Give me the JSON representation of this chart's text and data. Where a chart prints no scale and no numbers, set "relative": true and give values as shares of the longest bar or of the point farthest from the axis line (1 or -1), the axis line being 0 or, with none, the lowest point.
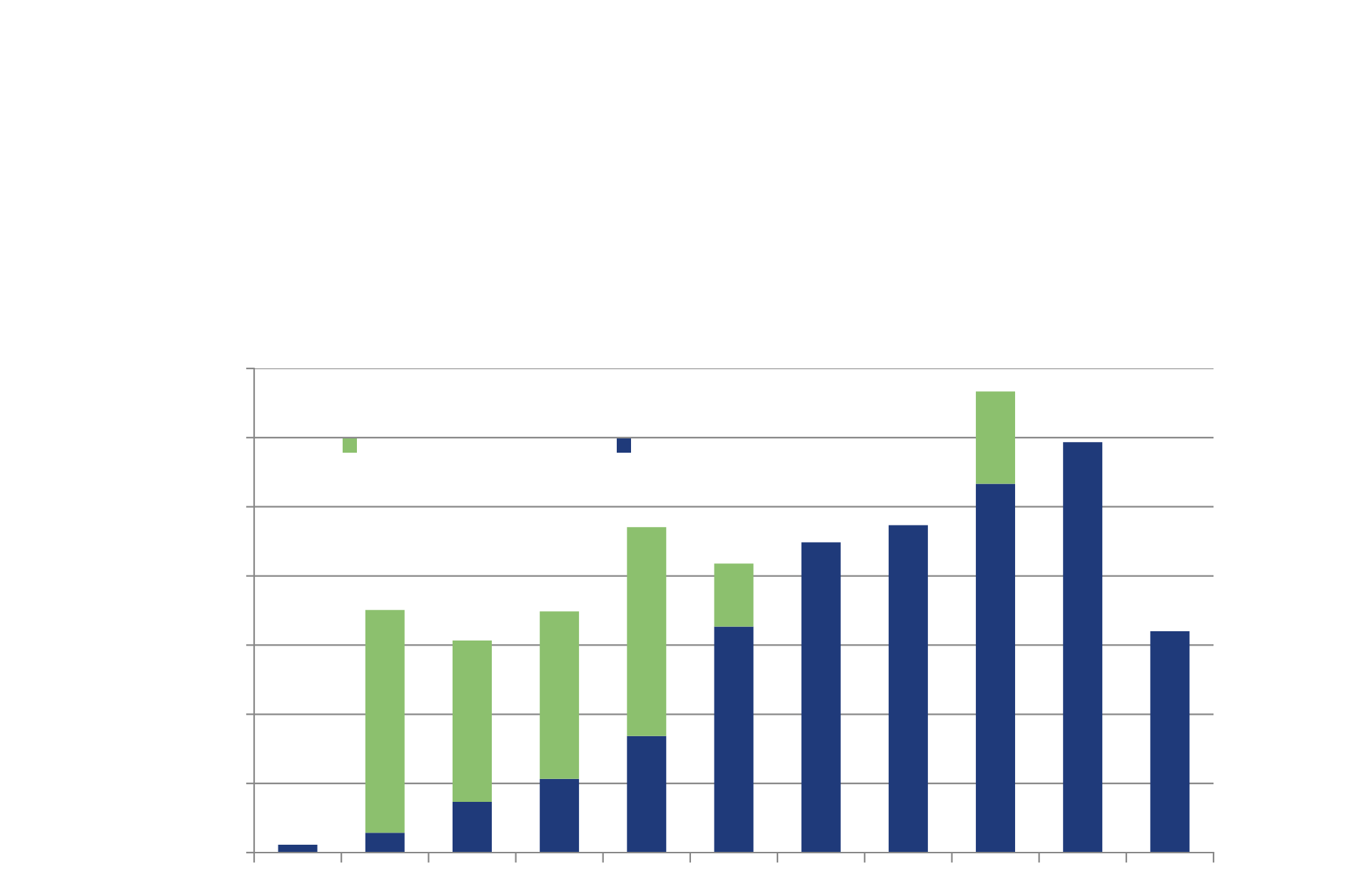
{
  "chart_data": {
    "type": "bar",
    "stacked": true,
    "relative": true,
    "categories": [
      null,
      null,
      null,
      null,
      null,
      null,
      null,
      null,
      null,
      null,
      null
    ],
    "series": [
      {
        "color": "#1f3a7a",
        "values": [
          0.017,
          0.043,
          0.11,
          0.16,
          0.253,
          0.49,
          0.673,
          0.71,
          0.8,
          0.89,
          0.48
        ]
      },
      {
        "color": "#8cc06e",
        "values": [
          null,
          0.483,
          0.35,
          0.363,
          0.453,
          0.137,
          null,
          null,
          0.2,
          null,
          null
        ]
      }
    ],
    "grid": "y"
  }
}
